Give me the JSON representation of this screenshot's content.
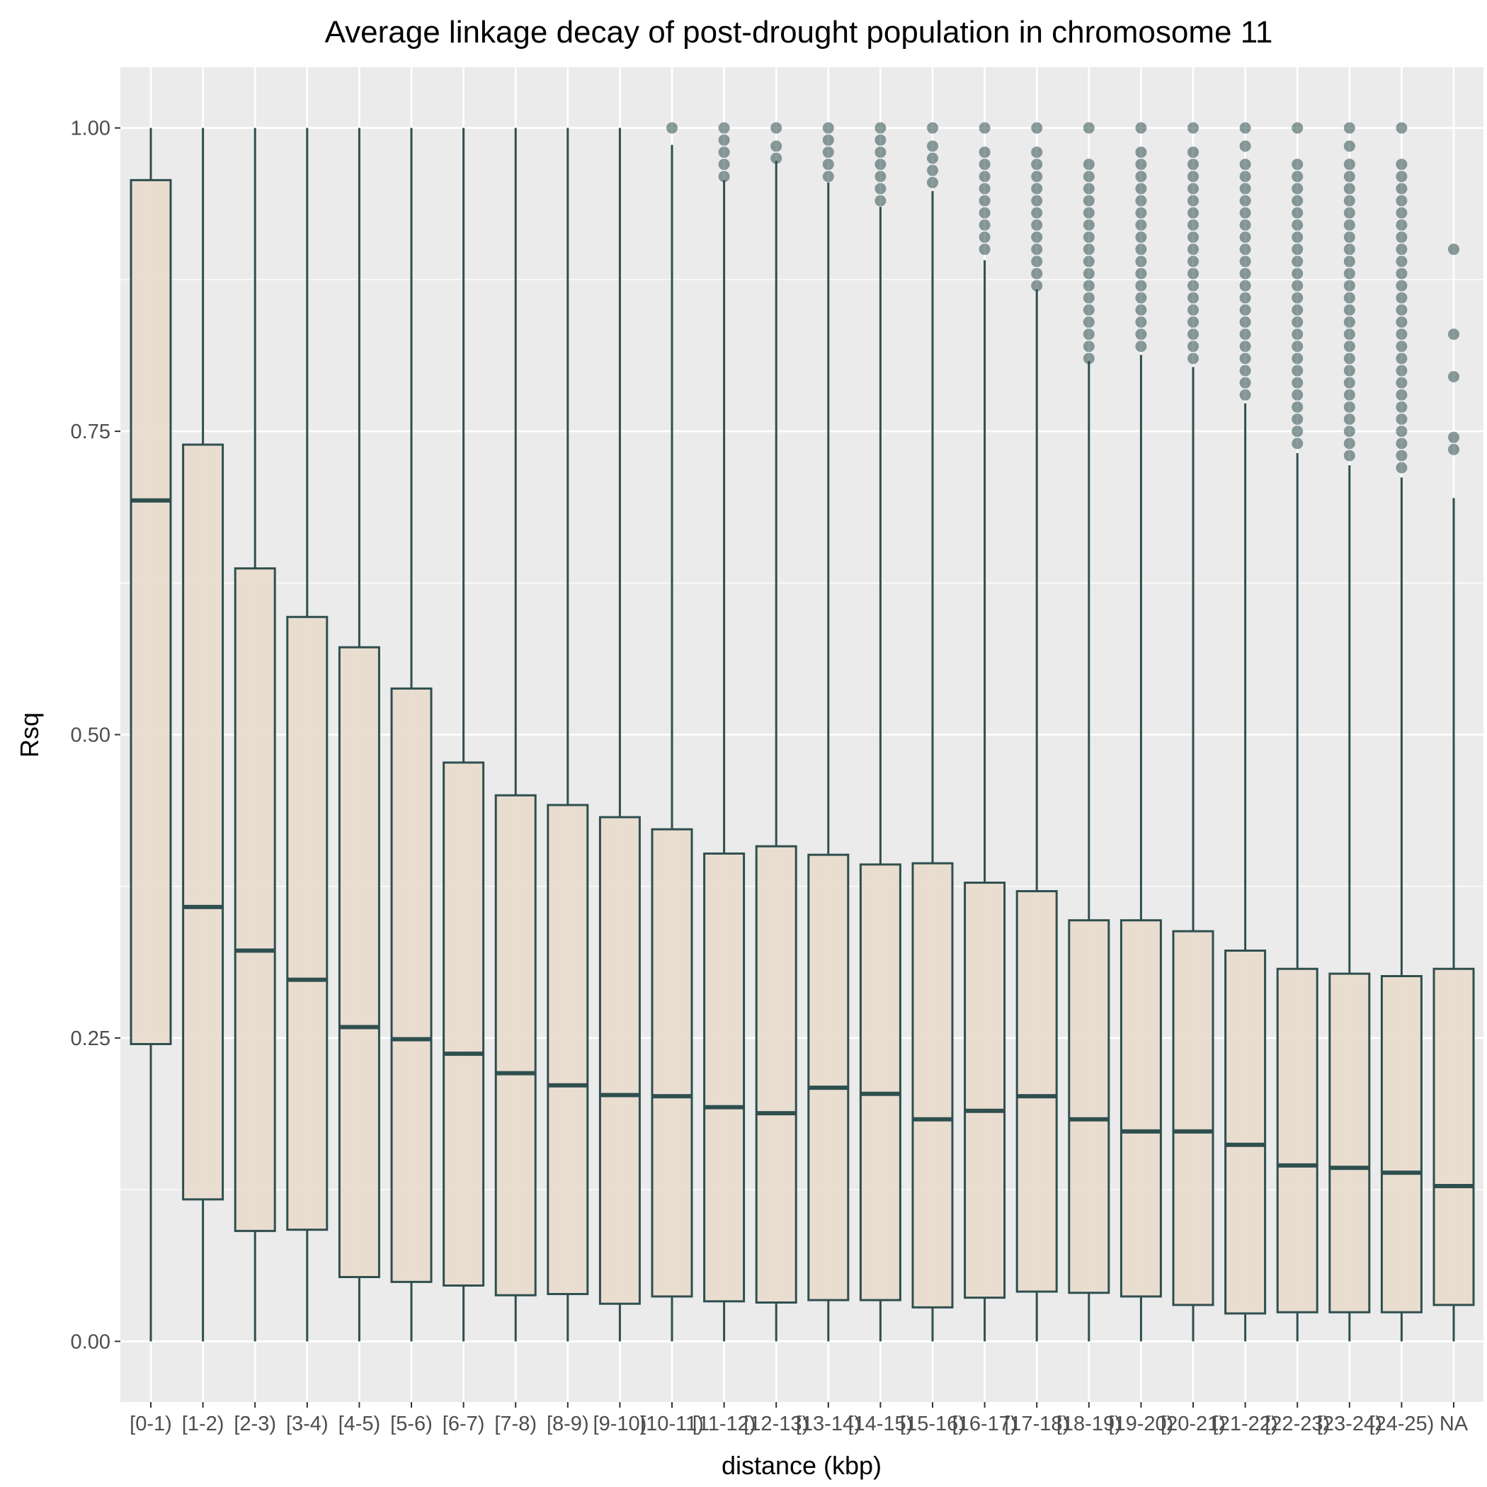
{
  "chart_data": {
    "type": "boxplot",
    "title": "Average linkage decay of post-drought population in chromosome  11",
    "xlabel": "distance (kbp)",
    "ylabel": "Rsq",
    "ylim": [
      -0.05,
      1.05
    ],
    "yticks": [
      0.0,
      0.25,
      0.5,
      0.75,
      1.0
    ],
    "ytick_labels": [
      "0.00",
      "0.25",
      "0.50",
      "0.75",
      "1.00"
    ],
    "grid": true,
    "legend": "none",
    "colors": {
      "panel": "#ebebeb",
      "grid": "#ffffff",
      "box_fill": "#e8dccd",
      "box_line": "#2f4f4f",
      "outlier": "#2f4f4f"
    },
    "categories": [
      "[0-1)",
      "[1-2)",
      "[2-3)",
      "[3-4)",
      "[4-5)",
      "[5-6)",
      "[6-7)",
      "[7-8)",
      "[8-9)",
      "[9-10)",
      "[10-11)",
      "[11-12)",
      "[12-13)",
      "[13-14)",
      "[14-15)",
      "[15-16)",
      "[16-17)",
      "[17-18)",
      "[18-19)",
      "[19-20)",
      "[20-21)",
      "[21-22)",
      "[22-23)",
      "[23-24)",
      "[24-25)",
      "NA"
    ],
    "boxes": [
      {
        "min": 0.0,
        "q1": 0.245,
        "median": 0.693,
        "q3": 0.957,
        "max": 1.0,
        "outliers": []
      },
      {
        "min": 0.0,
        "q1": 0.117,
        "median": 0.358,
        "q3": 0.739,
        "max": 1.0,
        "outliers": []
      },
      {
        "min": 0.0,
        "q1": 0.091,
        "median": 0.322,
        "q3": 0.637,
        "max": 1.0,
        "outliers": []
      },
      {
        "min": 0.0,
        "q1": 0.092,
        "median": 0.298,
        "q3": 0.597,
        "max": 1.0,
        "outliers": []
      },
      {
        "min": 0.0,
        "q1": 0.053,
        "median": 0.259,
        "q3": 0.572,
        "max": 1.0,
        "outliers": []
      },
      {
        "min": 0.0,
        "q1": 0.049,
        "median": 0.249,
        "q3": 0.538,
        "max": 1.0,
        "outliers": []
      },
      {
        "min": 0.0,
        "q1": 0.046,
        "median": 0.237,
        "q3": 0.477,
        "max": 1.0,
        "outliers": []
      },
      {
        "min": 0.0,
        "q1": 0.038,
        "median": 0.221,
        "q3": 0.45,
        "max": 1.0,
        "outliers": []
      },
      {
        "min": 0.0,
        "q1": 0.039,
        "median": 0.211,
        "q3": 0.442,
        "max": 1.0,
        "outliers": []
      },
      {
        "min": 0.0,
        "q1": 0.031,
        "median": 0.203,
        "q3": 0.432,
        "max": 1.0,
        "outliers": []
      },
      {
        "min": 0.0,
        "q1": 0.037,
        "median": 0.202,
        "q3": 0.422,
        "max": 0.986,
        "outliers": [
          1.0
        ]
      },
      {
        "min": 0.0,
        "q1": 0.033,
        "median": 0.193,
        "q3": 0.402,
        "max": 0.957,
        "outliers": [
          0.96,
          0.97,
          0.98,
          0.99,
          1.0
        ]
      },
      {
        "min": 0.0,
        "q1": 0.032,
        "median": 0.188,
        "q3": 0.408,
        "max": 0.973,
        "outliers": [
          0.975,
          0.985,
          1.0
        ]
      },
      {
        "min": 0.0,
        "q1": 0.034,
        "median": 0.209,
        "q3": 0.401,
        "max": 0.955,
        "outliers": [
          0.96,
          0.97,
          0.98,
          0.99,
          1.0
        ]
      },
      {
        "min": 0.0,
        "q1": 0.034,
        "median": 0.204,
        "q3": 0.393,
        "max": 0.935,
        "outliers": [
          0.94,
          0.95,
          0.96,
          0.97,
          0.98,
          0.99,
          1.0
        ]
      },
      {
        "min": 0.0,
        "q1": 0.028,
        "median": 0.183,
        "q3": 0.394,
        "max": 0.948,
        "outliers": [
          0.955,
          0.965,
          0.975,
          0.985,
          1.0
        ]
      },
      {
        "min": 0.0,
        "q1": 0.036,
        "median": 0.19,
        "q3": 0.378,
        "max": 0.891,
        "outliers": [
          0.9,
          0.91,
          0.92,
          0.93,
          0.94,
          0.95,
          0.96,
          0.97,
          0.98,
          1.0
        ]
      },
      {
        "min": 0.0,
        "q1": 0.041,
        "median": 0.202,
        "q3": 0.371,
        "max": 0.867,
        "outliers": [
          0.87,
          0.88,
          0.89,
          0.9,
          0.91,
          0.92,
          0.93,
          0.94,
          0.95,
          0.96,
          0.97,
          0.98,
          1.0
        ]
      },
      {
        "min": 0.0,
        "q1": 0.04,
        "median": 0.183,
        "q3": 0.347,
        "max": 0.808,
        "outliers": [
          0.81,
          0.82,
          0.83,
          0.84,
          0.85,
          0.86,
          0.87,
          0.88,
          0.89,
          0.9,
          0.91,
          0.92,
          0.93,
          0.94,
          0.95,
          0.96,
          0.97,
          1.0
        ]
      },
      {
        "min": 0.0,
        "q1": 0.037,
        "median": 0.173,
        "q3": 0.347,
        "max": 0.813,
        "outliers": [
          0.82,
          0.83,
          0.84,
          0.85,
          0.86,
          0.87,
          0.88,
          0.89,
          0.9,
          0.91,
          0.92,
          0.93,
          0.94,
          0.95,
          0.96,
          0.97,
          0.98,
          1.0
        ]
      },
      {
        "min": 0.0,
        "q1": 0.03,
        "median": 0.173,
        "q3": 0.338,
        "max": 0.803,
        "outliers": [
          0.81,
          0.82,
          0.83,
          0.84,
          0.85,
          0.86,
          0.87,
          0.88,
          0.89,
          0.9,
          0.91,
          0.92,
          0.93,
          0.94,
          0.95,
          0.96,
          0.97,
          0.98,
          1.0
        ]
      },
      {
        "min": 0.0,
        "q1": 0.023,
        "median": 0.162,
        "q3": 0.322,
        "max": 0.773,
        "outliers": [
          0.78,
          0.79,
          0.8,
          0.81,
          0.82,
          0.83,
          0.84,
          0.85,
          0.86,
          0.87,
          0.88,
          0.89,
          0.9,
          0.91,
          0.92,
          0.93,
          0.94,
          0.95,
          0.96,
          0.97,
          0.985,
          1.0
        ]
      },
      {
        "min": 0.0,
        "q1": 0.024,
        "median": 0.145,
        "q3": 0.307,
        "max": 0.732,
        "outliers": [
          0.74,
          0.75,
          0.76,
          0.77,
          0.78,
          0.79,
          0.8,
          0.81,
          0.82,
          0.83,
          0.84,
          0.85,
          0.86,
          0.87,
          0.88,
          0.89,
          0.9,
          0.91,
          0.92,
          0.93,
          0.94,
          0.95,
          0.96,
          0.97,
          1.0
        ]
      },
      {
        "min": 0.0,
        "q1": 0.024,
        "median": 0.143,
        "q3": 0.303,
        "max": 0.722,
        "outliers": [
          0.73,
          0.74,
          0.75,
          0.76,
          0.77,
          0.78,
          0.79,
          0.8,
          0.81,
          0.82,
          0.83,
          0.84,
          0.85,
          0.86,
          0.87,
          0.88,
          0.89,
          0.9,
          0.91,
          0.92,
          0.93,
          0.94,
          0.95,
          0.96,
          0.97,
          0.985,
          1.0
        ]
      },
      {
        "min": 0.0,
        "q1": 0.024,
        "median": 0.139,
        "q3": 0.301,
        "max": 0.712,
        "outliers": [
          0.72,
          0.73,
          0.74,
          0.75,
          0.76,
          0.77,
          0.78,
          0.79,
          0.8,
          0.81,
          0.82,
          0.83,
          0.84,
          0.85,
          0.86,
          0.87,
          0.88,
          0.89,
          0.9,
          0.91,
          0.92,
          0.93,
          0.94,
          0.95,
          0.96,
          0.97,
          1.0
        ]
      },
      {
        "min": 0.0,
        "q1": 0.03,
        "median": 0.128,
        "q3": 0.307,
        "max": 0.695,
        "outliers": [
          0.735,
          0.745,
          0.795,
          0.83,
          0.9
        ]
      }
    ]
  }
}
